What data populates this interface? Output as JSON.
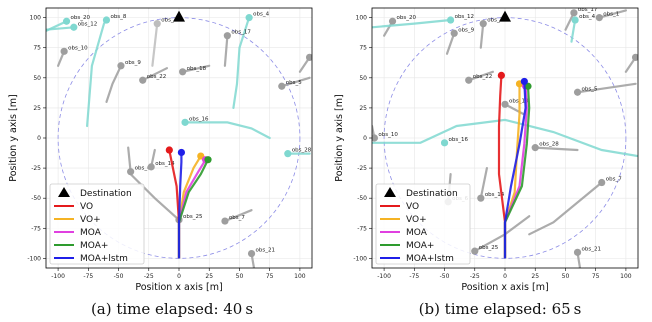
{
  "chart_data": [
    {
      "type": "scatter",
      "caption": "(a) time elapsed: 40 s",
      "xlabel": "Position x axis [m]",
      "ylabel": "Position y axis [m]",
      "xlim": [
        -110,
        110
      ],
      "ylim": [
        -108,
        108
      ],
      "xticks": [
        -100,
        -75,
        -50,
        -25,
        0,
        25,
        50,
        75,
        100
      ],
      "yticks": [
        -100,
        -75,
        -50,
        -25,
        0,
        25,
        50,
        75,
        100
      ],
      "grid": true,
      "legend_position": "lower-left",
      "circle": {
        "cx": 0,
        "cy": 0,
        "r": 100
      },
      "destination": {
        "x": 0,
        "y": 100
      },
      "obstacles": [
        {
          "id": "obs_20",
          "x": -93,
          "y": 97,
          "color": "#7fd8d0",
          "trail": [
            [
              -110,
              89
            ],
            [
              -93,
              97
            ]
          ]
        },
        {
          "id": "obs_8",
          "x": -60,
          "y": 98,
          "color": "#7fd8d0",
          "trail": [
            [
              -76,
              10
            ],
            [
              -72,
              60
            ],
            [
              -62,
              95
            ],
            [
              -60,
              98
            ]
          ]
        },
        {
          "id": "obs_12",
          "x": -87,
          "y": 92,
          "color": "#7fd8d0",
          "trail": [
            [
              -110,
              90
            ],
            [
              -87,
              92
            ]
          ]
        },
        {
          "id": "obs_21",
          "x": -18,
          "y": 95,
          "color": "#bdbdbd",
          "trail": [
            [
              -18,
              95
            ],
            [
              -22,
              60
            ]
          ]
        },
        {
          "id": "obs_4",
          "x": 58,
          "y": 100,
          "color": "#7fd8d0",
          "trail": [
            [
              58,
              100
            ],
            [
              50,
              75
            ],
            [
              48,
              45
            ],
            [
              45,
              25
            ]
          ]
        },
        {
          "id": "obs_17",
          "x": 40,
          "y": 85,
          "color": "#9e9e9e",
          "trail": [
            [
              40,
              85
            ],
            [
              38,
              60
            ]
          ]
        },
        {
          "id": "obs_10",
          "x": -95,
          "y": 72,
          "color": "#9e9e9e",
          "trail": [
            [
              -95,
              72
            ],
            [
              -100,
              60
            ]
          ]
        },
        {
          "id": "obs_26",
          "x": 108,
          "y": 67,
          "color": "#9e9e9e",
          "trail": [
            [
              108,
              67
            ],
            [
              100,
              55
            ]
          ]
        },
        {
          "id": "obs_9",
          "x": -48,
          "y": 60,
          "color": "#9e9e9e",
          "trail": [
            [
              -48,
              60
            ],
            [
              -55,
              45
            ],
            [
              -60,
              30
            ]
          ]
        },
        {
          "id": "obs_22",
          "x": -30,
          "y": 48,
          "color": "#9e9e9e",
          "trail": [
            [
              -30,
              48
            ],
            [
              -10,
              58
            ]
          ]
        },
        {
          "id": "obs_18",
          "x": 3,
          "y": 55,
          "color": "#9e9e9e",
          "trail": [
            [
              3,
              55
            ],
            [
              25,
              60
            ]
          ]
        },
        {
          "id": "obs_5",
          "x": 85,
          "y": 43,
          "color": "#9e9e9e",
          "trail": [
            [
              85,
              43
            ],
            [
              108,
              50
            ]
          ]
        },
        {
          "id": "obs_16",
          "x": 5,
          "y": 13,
          "color": "#7fd8d0",
          "trail": [
            [
              5,
              13
            ],
            [
              40,
              13
            ],
            [
              60,
              8
            ],
            [
              75,
              0
            ]
          ]
        },
        {
          "id": "obs_28",
          "x": 90,
          "y": -13,
          "color": "#7fd8d0",
          "trail": [
            [
              90,
              -13
            ],
            [
              108,
              -13
            ]
          ]
        },
        {
          "id": "obs_6",
          "x": -40,
          "y": -28,
          "color": "#9e9e9e",
          "trail": [
            [
              -40,
              -28
            ],
            [
              -42,
              -8
            ]
          ]
        },
        {
          "id": "obs_14",
          "x": -23,
          "y": -24,
          "color": "#9e9e9e",
          "trail": [
            [
              -23,
              -24
            ],
            [
              -20,
              -10
            ]
          ]
        },
        {
          "id": "obs_25",
          "x": 0,
          "y": -68,
          "color": "#9e9e9e",
          "trail": [
            [
              0,
              -68
            ],
            [
              -20,
              -50
            ],
            [
              -40,
              -30
            ]
          ]
        },
        {
          "id": "obs_7",
          "x": 38,
          "y": -69,
          "color": "#9e9e9e",
          "trail": [
            [
              38,
              -69
            ],
            [
              60,
              -60
            ]
          ]
        },
        {
          "id": "obs_21b",
          "x": 60,
          "y": -96,
          "color": "#9e9e9e",
          "trail": [
            [
              60,
              -96
            ],
            [
              62,
              -108
            ]
          ]
        }
      ],
      "obstacle_labels": [
        "obs_20",
        "obs_8",
        "obs_12",
        "obs_21",
        "obs_4",
        "obs_17",
        "obs_10",
        "obs_26",
        "obs_9",
        "obs_22",
        "obs_18",
        "obs_5",
        "obs_16",
        "obs_28",
        "obs_6",
        "obs_14",
        "obs_25",
        "obs_7",
        "obs_21"
      ],
      "series": [
        {
          "name": "VO",
          "color": "#e41a1c",
          "points": [
            [
              0,
              -100
            ],
            [
              0,
              -70
            ],
            [
              -2,
              -40
            ],
            [
              -6,
              -20
            ],
            [
              -8,
              -10
            ]
          ]
        },
        {
          "name": "VO+",
          "color": "#f5b324",
          "points": [
            [
              0,
              -100
            ],
            [
              0,
              -70
            ],
            [
              4,
              -45
            ],
            [
              12,
              -25
            ],
            [
              18,
              -15
            ]
          ]
        },
        {
          "name": "MOA",
          "color": "#e040e0",
          "points": [
            [
              0,
              -100
            ],
            [
              0,
              -70
            ],
            [
              6,
              -45
            ],
            [
              16,
              -28
            ],
            [
              22,
              -18
            ]
          ]
        },
        {
          "name": "MOA+",
          "color": "#2e9b2e",
          "points": [
            [
              0,
              -100
            ],
            [
              0,
              -70
            ],
            [
              8,
              -45
            ],
            [
              18,
              -30
            ],
            [
              24,
              -18
            ]
          ]
        },
        {
          "name": "MOA+lstm",
          "color": "#1f1fe8",
          "points": [
            [
              0,
              -100
            ],
            [
              0,
              -70
            ],
            [
              1,
              -40
            ],
            [
              2,
              -20
            ],
            [
              2,
              -12
            ]
          ]
        }
      ],
      "legend": [
        "Destination",
        "VO",
        "VO+",
        "MOA",
        "MOA+",
        "MOA+lstm"
      ]
    },
    {
      "type": "scatter",
      "caption": "(b) time elapsed: 65 s",
      "xlabel": "Position x axis [m]",
      "ylabel": "Position y axis [m]",
      "xlim": [
        -110,
        110
      ],
      "ylim": [
        -108,
        108
      ],
      "xticks": [
        -100,
        -75,
        -50,
        -25,
        0,
        25,
        50,
        75,
        100
      ],
      "yticks": [
        -100,
        -75,
        -50,
        -25,
        0,
        25,
        50,
        75,
        100
      ],
      "grid": true,
      "legend_position": "lower-left",
      "circle": {
        "cx": 0,
        "cy": 0,
        "r": 100
      },
      "destination": {
        "x": 0,
        "y": 100
      },
      "obstacles": [
        {
          "id": "obs_20",
          "x": -93,
          "y": 97,
          "color": "#9e9e9e",
          "trail": [
            [
              -93,
              97
            ],
            [
              -100,
              85
            ]
          ]
        },
        {
          "id": "obs_12",
          "x": -45,
          "y": 98,
          "color": "#7fd8d0",
          "trail": [
            [
              -110,
              92
            ],
            [
              -75,
              95
            ],
            [
              -45,
              98
            ]
          ]
        },
        {
          "id": "obs_21",
          "x": -18,
          "y": 95,
          "color": "#9e9e9e",
          "trail": [
            [
              -18,
              95
            ],
            [
              -20,
              75
            ]
          ]
        },
        {
          "id": "obs_9",
          "x": -42,
          "y": 87,
          "color": "#9e9e9e",
          "trail": [
            [
              -42,
              87
            ],
            [
              -48,
              70
            ]
          ]
        },
        {
          "id": "obs_17",
          "x": 57,
          "y": 104,
          "color": "#9e9e9e",
          "trail": [
            [
              57,
              104
            ],
            [
              50,
              90
            ]
          ]
        },
        {
          "id": "obs_1",
          "x": 78,
          "y": 100,
          "color": "#9e9e9e",
          "trail": [
            [
              78,
              100
            ],
            [
              100,
              106
            ]
          ]
        },
        {
          "id": "obs_4",
          "x": 58,
          "y": 98,
          "color": "#7fd8d0",
          "trail": [
            [
              58,
              98
            ],
            [
              55,
              80
            ]
          ]
        },
        {
          "id": "obs_26",
          "x": 108,
          "y": 67,
          "color": "#9e9e9e",
          "trail": [
            [
              108,
              67
            ],
            [
              100,
              55
            ]
          ]
        },
        {
          "id": "obs_22",
          "x": -30,
          "y": 48,
          "color": "#9e9e9e",
          "trail": [
            [
              -30,
              48
            ],
            [
              -10,
              55
            ]
          ]
        },
        {
          "id": "obs_5",
          "x": 60,
          "y": 38,
          "color": "#9e9e9e",
          "trail": [
            [
              60,
              38
            ],
            [
              108,
              45
            ]
          ]
        },
        {
          "id": "obs_18",
          "x": 0,
          "y": 28,
          "color": "#9e9e9e",
          "trail": [
            [
              0,
              28
            ],
            [
              15,
              20
            ]
          ]
        },
        {
          "id": "obs_16",
          "x": -50,
          "y": -4,
          "color": "#7fd8d0",
          "trail": [
            [
              -110,
              -4
            ],
            [
              -70,
              -4
            ],
            [
              -40,
              10
            ],
            [
              0,
              15
            ],
            [
              40,
              5
            ],
            [
              80,
              -10
            ],
            [
              110,
              -15
            ]
          ]
        },
        {
          "id": "obs_28",
          "x": 25,
          "y": -8,
          "color": "#9e9e9e",
          "trail": [
            [
              25,
              -8
            ],
            [
              60,
              -10
            ]
          ]
        },
        {
          "id": "obs_6",
          "x": -47,
          "y": -53,
          "color": "#9e9e9e",
          "trail": [
            [
              -47,
              -53
            ],
            [
              -45,
              -30
            ]
          ]
        },
        {
          "id": "obs_14",
          "x": -20,
          "y": -50,
          "color": "#9e9e9e",
          "trail": [
            [
              -20,
              -50
            ],
            [
              -15,
              -25
            ]
          ]
        },
        {
          "id": "obs_7",
          "x": 80,
          "y": -37,
          "color": "#9e9e9e",
          "trail": [
            [
              80,
              -37
            ],
            [
              40,
              -70
            ],
            [
              20,
              -80
            ]
          ]
        },
        {
          "id": "obs_25",
          "x": -25,
          "y": -94,
          "color": "#9e9e9e",
          "trail": [
            [
              -25,
              -94
            ],
            [
              0,
              -80
            ],
            [
              20,
              -65
            ]
          ]
        },
        {
          "id": "obs_21b",
          "x": 60,
          "y": -95,
          "color": "#9e9e9e",
          "trail": [
            [
              60,
              -95
            ],
            [
              62,
              -108
            ]
          ]
        },
        {
          "id": "obs_10",
          "x": -108,
          "y": 0,
          "color": "#9e9e9e",
          "trail": [
            [
              -108,
              0
            ],
            [
              -110,
              10
            ]
          ]
        }
      ],
      "obstacle_labels": [
        "obs_20",
        "obs_12",
        "obs_21",
        "obs_9",
        "obs_17",
        "obs_1",
        "obs_4",
        "obs_26",
        "obs_22",
        "obs_5",
        "obs_18",
        "obs_16",
        "obs_28",
        "obs_6",
        "obs_14",
        "obs_7",
        "obs_25",
        "obs_21",
        "obs_10"
      ],
      "series": [
        {
          "name": "VO",
          "color": "#e41a1c",
          "points": [
            [
              0,
              -100
            ],
            [
              0,
              -70
            ],
            [
              -5,
              -30
            ],
            [
              -5,
              10
            ],
            [
              -4,
              35
            ],
            [
              -3,
              52
            ]
          ]
        },
        {
          "name": "VO+",
          "color": "#f5b324",
          "points": [
            [
              0,
              -100
            ],
            [
              0,
              -70
            ],
            [
              8,
              -45
            ],
            [
              10,
              -10
            ],
            [
              12,
              20
            ],
            [
              12,
              45
            ]
          ]
        },
        {
          "name": "MOA",
          "color": "#e040e0",
          "points": [
            [
              0,
              -100
            ],
            [
              0,
              -70
            ],
            [
              12,
              -40
            ],
            [
              16,
              -5
            ],
            [
              18,
              25
            ],
            [
              17,
              43
            ]
          ]
        },
        {
          "name": "MOA+",
          "color": "#2e9b2e",
          "points": [
            [
              0,
              -100
            ],
            [
              0,
              -70
            ],
            [
              14,
              -40
            ],
            [
              18,
              -5
            ],
            [
              20,
              25
            ],
            [
              19,
              43
            ]
          ]
        },
        {
          "name": "MOA+lstm",
          "color": "#1f1fe8",
          "points": [
            [
              0,
              -100
            ],
            [
              0,
              -70
            ],
            [
              5,
              -40
            ],
            [
              12,
              -5
            ],
            [
              17,
              25
            ],
            [
              16,
              47
            ]
          ]
        }
      ],
      "legend": [
        "Destination",
        "VO",
        "VO+",
        "MOA",
        "MOA+",
        "MOA+lstm"
      ]
    }
  ]
}
